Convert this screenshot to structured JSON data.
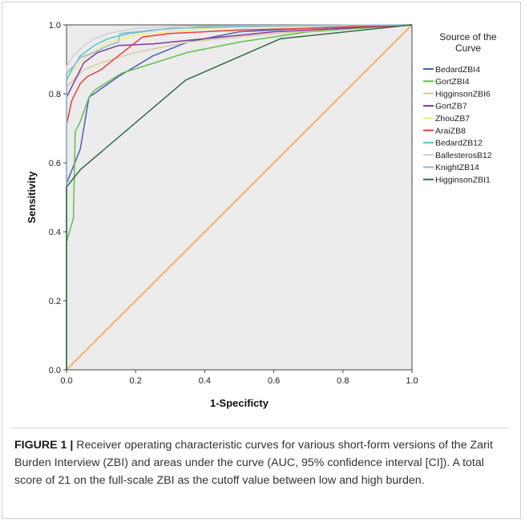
{
  "chart_data": {
    "type": "line",
    "xlabel": "1-Specificty",
    "ylabel": "Sensitivity",
    "xlim": [
      0.0,
      1.0
    ],
    "ylim": [
      0.0,
      1.0
    ],
    "x_ticks": [
      "0.0",
      "0.2",
      "0.4",
      "0.6",
      "0.8",
      "1.0"
    ],
    "y_ticks": [
      "0.0",
      "0.2",
      "0.4",
      "0.6",
      "0.8",
      "1.0"
    ],
    "grid": false,
    "legend_title": "Source of the Curve",
    "legend_title_lines": [
      "Source of the",
      "Curve"
    ],
    "legend_placement": "right",
    "series": [
      {
        "name": "BedardZBI4",
        "color": "#4f5fb5",
        "x": [
          0,
          0,
          0.04,
          0.05,
          0.065,
          0.15,
          0.25,
          0.35,
          0.5,
          0.7,
          1.0
        ],
        "y": [
          0,
          0.54,
          0.64,
          0.7,
          0.79,
          0.85,
          0.91,
          0.95,
          0.98,
          0.99,
          1.0
        ]
      },
      {
        "name": "GortZBI4",
        "color": "#5fc04a",
        "x": [
          0,
          0,
          0.02,
          0.025,
          0.04,
          0.065,
          0.08,
          0.16,
          0.35,
          0.5,
          0.7,
          0.85,
          1.0
        ],
        "y": [
          0,
          0.37,
          0.44,
          0.69,
          0.72,
          0.79,
          0.81,
          0.86,
          0.92,
          0.95,
          0.98,
          0.99,
          1.0
        ]
      },
      {
        "name": "HigginsonZBI6",
        "color": "#d8cc9c",
        "x": [
          0,
          0,
          0.02,
          0.05,
          0.1,
          0.2,
          0.35,
          0.55,
          0.8,
          1.0
        ],
        "y": [
          0,
          0.82,
          0.84,
          0.87,
          0.89,
          0.92,
          0.95,
          0.97,
          0.99,
          1.0
        ]
      },
      {
        "name": "GortZB7",
        "color": "#7d3c98",
        "x": [
          0,
          0,
          0.01,
          0.03,
          0.05,
          0.09,
          0.15,
          0.25,
          0.4,
          0.6,
          0.8,
          1.0
        ],
        "y": [
          0,
          0.79,
          0.81,
          0.85,
          0.89,
          0.92,
          0.94,
          0.945,
          0.96,
          0.98,
          0.99,
          1.0
        ]
      },
      {
        "name": "ZhouZB7",
        "color": "#f2ee7a",
        "x": [
          0,
          0,
          0.02,
          0.06,
          0.12,
          0.2,
          0.4,
          0.6,
          1.0
        ],
        "y": [
          0,
          0.85,
          0.87,
          0.91,
          0.95,
          0.97,
          0.99,
          0.995,
          1.0
        ]
      },
      {
        "name": "AraiZB8",
        "color": "#ec3b3b",
        "x": [
          0,
          0,
          0.015,
          0.04,
          0.06,
          0.1,
          0.15,
          0.22,
          0.3,
          0.5,
          0.7,
          1.0
        ],
        "y": [
          0,
          0.71,
          0.78,
          0.83,
          0.85,
          0.87,
          0.91,
          0.965,
          0.975,
          0.985,
          0.99,
          1.0
        ]
      },
      {
        "name": "BedardZB12",
        "color": "#4cc6c4",
        "x": [
          0,
          0,
          0.015,
          0.04,
          0.08,
          0.12,
          0.18,
          0.3,
          0.5,
          1.0
        ],
        "y": [
          0,
          0.84,
          0.87,
          0.91,
          0.94,
          0.96,
          0.975,
          0.99,
          0.995,
          1.0
        ]
      },
      {
        "name": "BallesterosB12",
        "color": "#cfcfcf",
        "x": [
          0,
          0,
          0.02,
          0.05,
          0.08,
          0.12,
          0.2,
          0.35,
          1.0
        ],
        "y": [
          0,
          0.88,
          0.91,
          0.94,
          0.96,
          0.975,
          0.99,
          0.997,
          1.0
        ]
      },
      {
        "name": "KnightZB14",
        "color": "#8fb8d8",
        "x": [
          0,
          0,
          0.02,
          0.04,
          0.08,
          0.12,
          0.15,
          0.155,
          0.25,
          0.4,
          1.0
        ],
        "y": [
          0,
          0.86,
          0.88,
          0.905,
          0.92,
          0.94,
          0.95,
          0.975,
          0.985,
          0.995,
          1.0
        ]
      },
      {
        "name": "HigginsonZBI1",
        "color": "#2e6b46",
        "x": [
          0,
          0,
          0.04,
          0.345,
          0.62,
          1.0
        ],
        "y": [
          0,
          0.53,
          0.58,
          0.84,
          0.96,
          1.0
        ]
      },
      {
        "name": "",
        "color": "#f0a040",
        "x": [
          0,
          1.0
        ],
        "y": [
          0,
          1.0
        ]
      }
    ]
  },
  "caption": {
    "label": "FIGURE 1 |",
    "text": " Receiver operating characteristic curves for various short-form versions of the Zarit Burden Interview (ZBI) and areas under the curve (AUC, 95% confidence interval [CI]). A total score of 21 on the full-scale ZBI as the cutoff value between low and high burden."
  }
}
